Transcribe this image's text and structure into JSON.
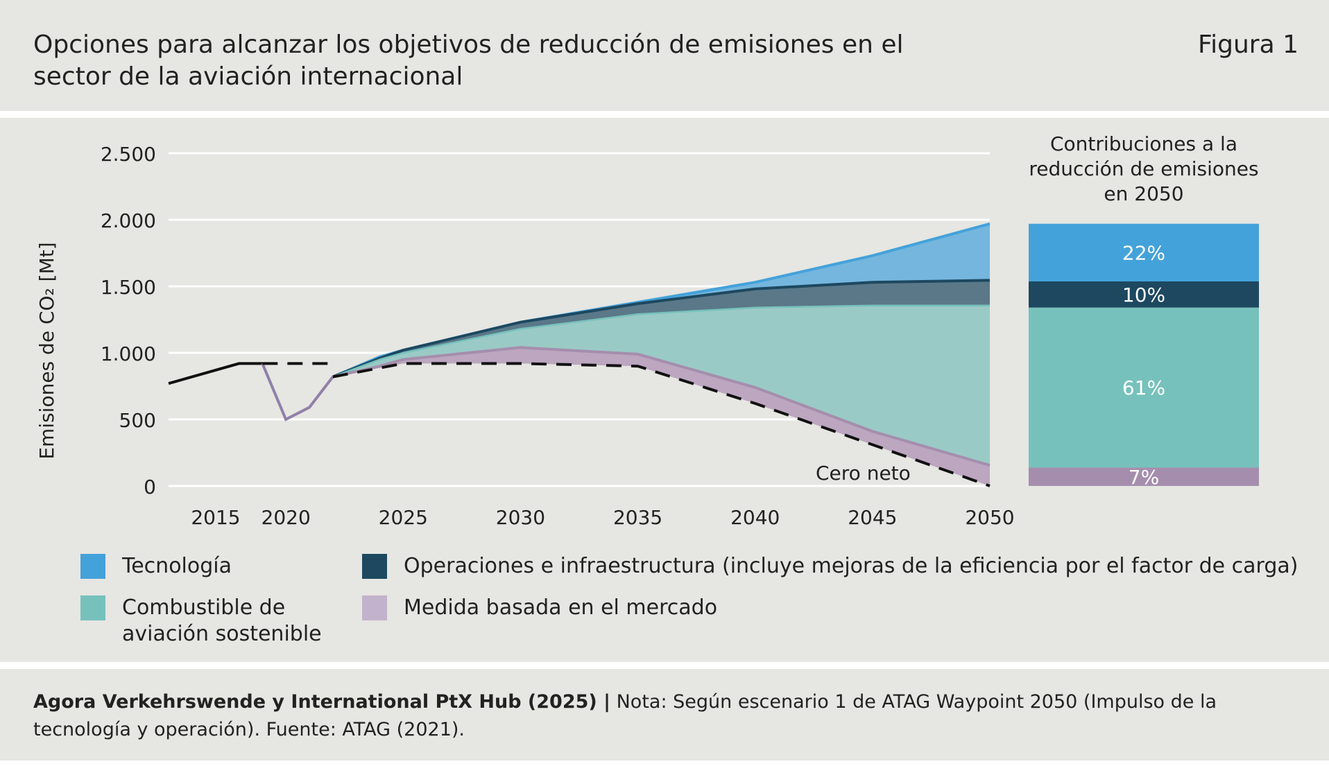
{
  "header": {
    "title": "Opciones para alcanzar los objetivos de reducción de emisiones en el sector de la aviación internacional",
    "figure_label": "Figura 1"
  },
  "chart_data": {
    "type": "area",
    "ylabel": "Emisiones de CO₂ [Mt]",
    "y_ticks": [
      0,
      500,
      1000,
      1500,
      2000,
      2500
    ],
    "y_tick_labels": [
      "0",
      "500",
      "1.000",
      "1.500",
      "2.000",
      "2.500"
    ],
    "ylim": [
      0,
      2500
    ],
    "x_ticks": [
      2015,
      2020,
      2025,
      2030,
      2035,
      2040,
      2045,
      2050
    ],
    "xlim": [
      2015,
      2050
    ],
    "grid": true,
    "history": {
      "x": [
        2015,
        2018,
        2019,
        2020,
        2021,
        2022
      ],
      "y": [
        770,
        920,
        920,
        500,
        590,
        820
      ]
    },
    "pre_2022_baseline_dashed": {
      "x": [
        2019,
        2022
      ],
      "y": [
        920,
        920
      ]
    },
    "projection_x": [
      2022,
      2024,
      2025,
      2030,
      2035,
      2040,
      2045,
      2050
    ],
    "series": [
      {
        "name": "Tecnología",
        "upper": [
          820,
          970,
          1020,
          1230,
          1380,
          1530,
          1730,
          1970
        ]
      },
      {
        "name": "Operaciones e infraestructura (incluye mejoras de la eficiencia por el factor de carga)",
        "upper": [
          820,
          960,
          1020,
          1230,
          1370,
          1480,
          1530,
          1545
        ]
      },
      {
        "name": "Combustible de aviación sostenible",
        "upper": [
          820,
          950,
          1000,
          1180,
          1290,
          1340,
          1355,
          1355
        ]
      },
      {
        "name": "Medida basada en el mercado",
        "upper": [
          820,
          900,
          950,
          1040,
          990,
          740,
          410,
          155
        ]
      }
    ],
    "net_zero_line": {
      "label": "Cero neto",
      "x": [
        2022,
        2025,
        2030,
        2035,
        2040,
        2045,
        2050
      ],
      "y": [
        820,
        920,
        920,
        900,
        620,
        310,
        0
      ]
    },
    "contributions_2050": {
      "title": [
        "Contribuciones a la",
        "reducción de emisiones",
        "en 2050"
      ],
      "segments": [
        {
          "name": "Tecnología",
          "label": "22%",
          "value": 22
        },
        {
          "name": "Operaciones e infraestructura",
          "label": "10%",
          "value": 10
        },
        {
          "name": "Combustible de aviación sostenible",
          "label": "61%",
          "value": 61
        },
        {
          "name": "Medida basada en el mercado",
          "label": "7%",
          "value": 7
        }
      ]
    }
  },
  "colors": {
    "tecnologia": "#44a2da",
    "tecnologia_fill": "#74b6de",
    "operaciones": "#1d4860",
    "operaciones_fill": "#5a7888",
    "combustible": "#77c1bc",
    "combustible_fill": "#9acac6",
    "mercado": "#a58ead",
    "mercado_fill": "#bca6c0",
    "mercado_swatch": "#c2b2cc",
    "history_line": "#111111",
    "covid_line": "#9080a8"
  },
  "legend": [
    {
      "key": "tecnologia",
      "label": "Tecnología"
    },
    {
      "key": "operaciones",
      "label": "Operaciones e infraestructura (incluye mejoras de la eficiencia por el factor de carga)"
    },
    {
      "key": "combustible",
      "label": "Combustible de aviación sostenible"
    },
    {
      "key": "mercado",
      "label": "Medida basada en el mercado"
    }
  ],
  "footer": {
    "source_bold": "Agora Verkehrswende y International PtX Hub (2025) |",
    "note": " Nota: Según escenario 1 de ATAG Waypoint 2050 (Impulso de la tecnología y operación). Fuente: ATAG (2021)."
  }
}
